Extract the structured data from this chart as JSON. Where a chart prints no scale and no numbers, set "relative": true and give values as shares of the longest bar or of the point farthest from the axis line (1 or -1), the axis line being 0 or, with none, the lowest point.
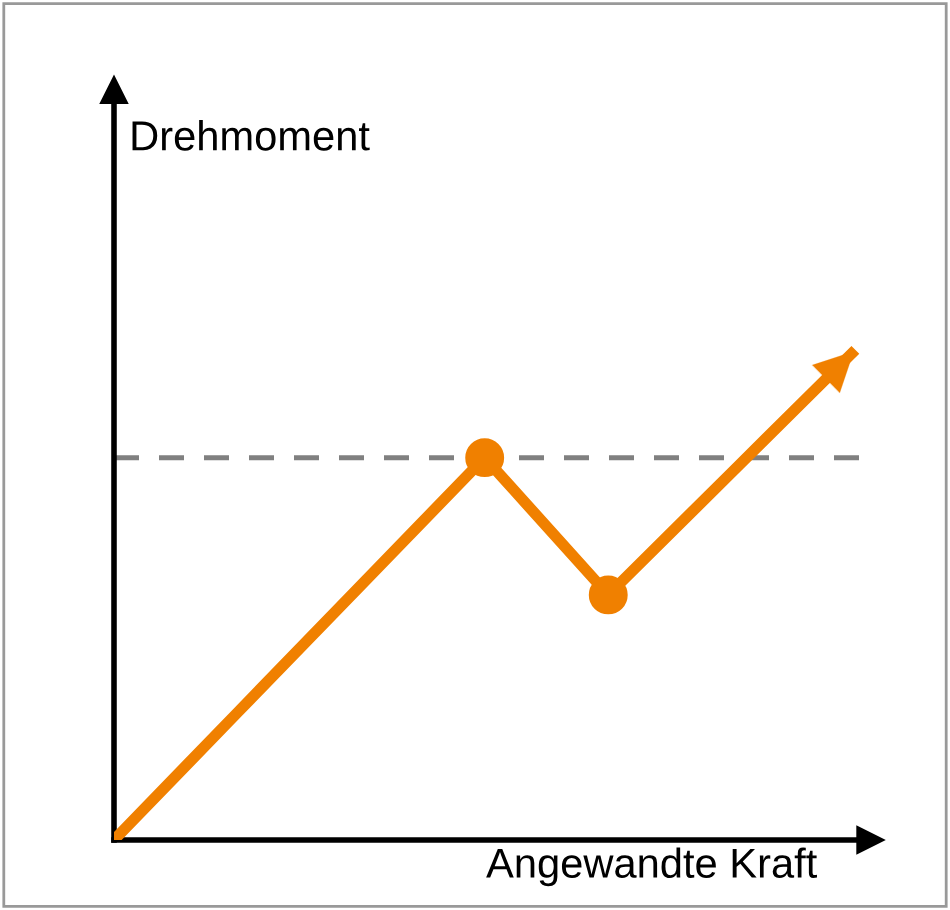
{
  "chart_data": {
    "type": "line",
    "relative": true,
    "xlabel": "Angewandte Kraft",
    "ylabel": "Drehmoment",
    "categories": [
      null,
      null,
      null,
      null,
      null,
      null,
      null
    ],
    "line_style": "solid",
    "legend": false,
    "series": [
      {
        "color": "#f08000",
        "values": [
          0,
          0.26,
          0.52,
          0.78,
          0.5,
          0.75,
          1
        ]
      }
    ],
    "ref_lines": [
      {
        "axis": "y",
        "value": 0.78,
        "color": "#808080",
        "line_style": "dashed"
      }
    ]
  }
}
